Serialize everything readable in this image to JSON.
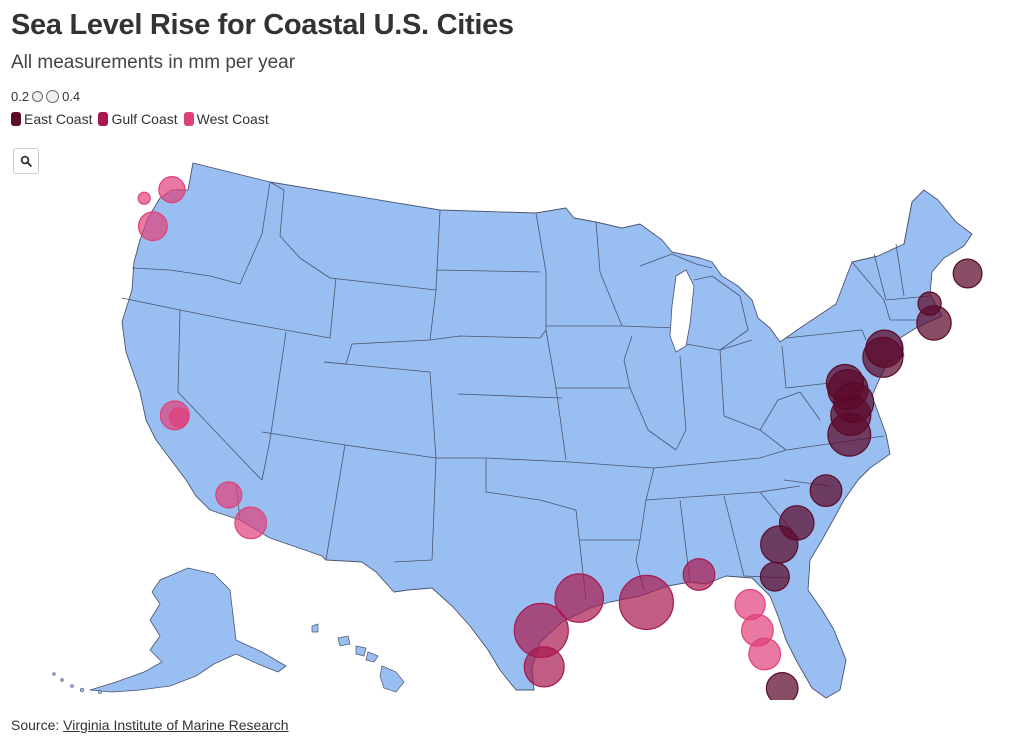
{
  "title": "Sea Level Rise for Coastal U.S. Cities",
  "subtitle": "All measurements in mm per year",
  "size_legend": {
    "min_label": "0.2",
    "max_label": "0.4"
  },
  "color_legend": [
    {
      "label": "East Coast",
      "color": "#5c0a2a"
    },
    {
      "label": "Gulf Coast",
      "color": "#a8184f"
    },
    {
      "label": "West Coast",
      "color": "#e0407a"
    }
  ],
  "colors": {
    "land": "#99bff2",
    "state_border": "#4a5470",
    "east": "#5c0a2a",
    "gulf": "#a8184f",
    "west": "#e0407a",
    "bubble_stroke": "#555555"
  },
  "zoom_icon": "search-icon",
  "source": {
    "prefix": "Source: ",
    "link_text": "Virginia Institute of Marine Research"
  },
  "map_data": {
    "region": "United States (lower 48, Alaska, Hawaii)",
    "stations": [
      {
        "region": "West Coast",
        "lat": 48.3,
        "lon": -122.7,
        "size": 0.3
      },
      {
        "region": "West Coast",
        "lat": 47.9,
        "lon": -124.6,
        "size": 0.2
      },
      {
        "region": "West Coast",
        "lat": 46.6,
        "lon": -124.0,
        "size": 0.32
      },
      {
        "region": "West Coast",
        "lat": 37.8,
        "lon": -122.5,
        "size": 0.32
      },
      {
        "region": "West Coast",
        "lat": 37.7,
        "lon": -122.2,
        "size": 0.25
      },
      {
        "region": "West Coast",
        "lat": 34.1,
        "lon": -118.8,
        "size": 0.3
      },
      {
        "region": "West Coast",
        "lat": 32.8,
        "lon": -117.3,
        "size": 0.34
      },
      {
        "region": "East Coast",
        "lat": 44.4,
        "lon": -68.2,
        "size": 0.32
      },
      {
        "region": "East Coast",
        "lat": 43.0,
        "lon": -70.8,
        "size": 0.28
      },
      {
        "region": "East Coast",
        "lat": 42.1,
        "lon": -70.5,
        "size": 0.36
      },
      {
        "region": "East Coast",
        "lat": 40.9,
        "lon": -73.9,
        "size": 0.38
      },
      {
        "region": "East Coast",
        "lat": 40.5,
        "lon": -74.0,
        "size": 0.4
      },
      {
        "region": "East Coast",
        "lat": 39.3,
        "lon": -76.6,
        "size": 0.38
      },
      {
        "region": "East Coast",
        "lat": 39.0,
        "lon": -76.4,
        "size": 0.4
      },
      {
        "region": "East Coast",
        "lat": 38.4,
        "lon": -76.0,
        "size": 0.4
      },
      {
        "region": "East Coast",
        "lat": 37.8,
        "lon": -76.2,
        "size": 0.4
      },
      {
        "region": "East Coast",
        "lat": 36.9,
        "lon": -76.3,
        "size": 0.42
      },
      {
        "region": "East Coast",
        "lat": 34.3,
        "lon": -77.9,
        "size": 0.34
      },
      {
        "region": "East Coast",
        "lat": 32.8,
        "lon": -79.9,
        "size": 0.36
      },
      {
        "region": "East Coast",
        "lat": 31.8,
        "lon": -81.1,
        "size": 0.38
      },
      {
        "region": "East Coast",
        "lat": 30.3,
        "lon": -81.4,
        "size": 0.32
      },
      {
        "region": "East Coast",
        "lat": 25.1,
        "lon": -80.9,
        "size": 0.34
      },
      {
        "region": "West Coast",
        "lat": 29.0,
        "lon": -83.1,
        "size": 0.33
      },
      {
        "region": "West Coast",
        "lat": 27.8,
        "lon": -82.6,
        "size": 0.34
      },
      {
        "region": "West Coast",
        "lat": 26.7,
        "lon": -82.1,
        "size": 0.34
      },
      {
        "region": "Gulf Coast",
        "lat": 30.4,
        "lon": -86.6,
        "size": 0.34
      },
      {
        "region": "Gulf Coast",
        "lat": 29.1,
        "lon": -90.2,
        "size": 0.5
      },
      {
        "region": "Gulf Coast",
        "lat": 29.3,
        "lon": -94.8,
        "size": 0.46
      },
      {
        "region": "Gulf Coast",
        "lat": 27.8,
        "lon": -97.4,
        "size": 0.5
      },
      {
        "region": "Gulf Coast",
        "lat": 26.1,
        "lon": -97.2,
        "size": 0.4
      }
    ]
  }
}
